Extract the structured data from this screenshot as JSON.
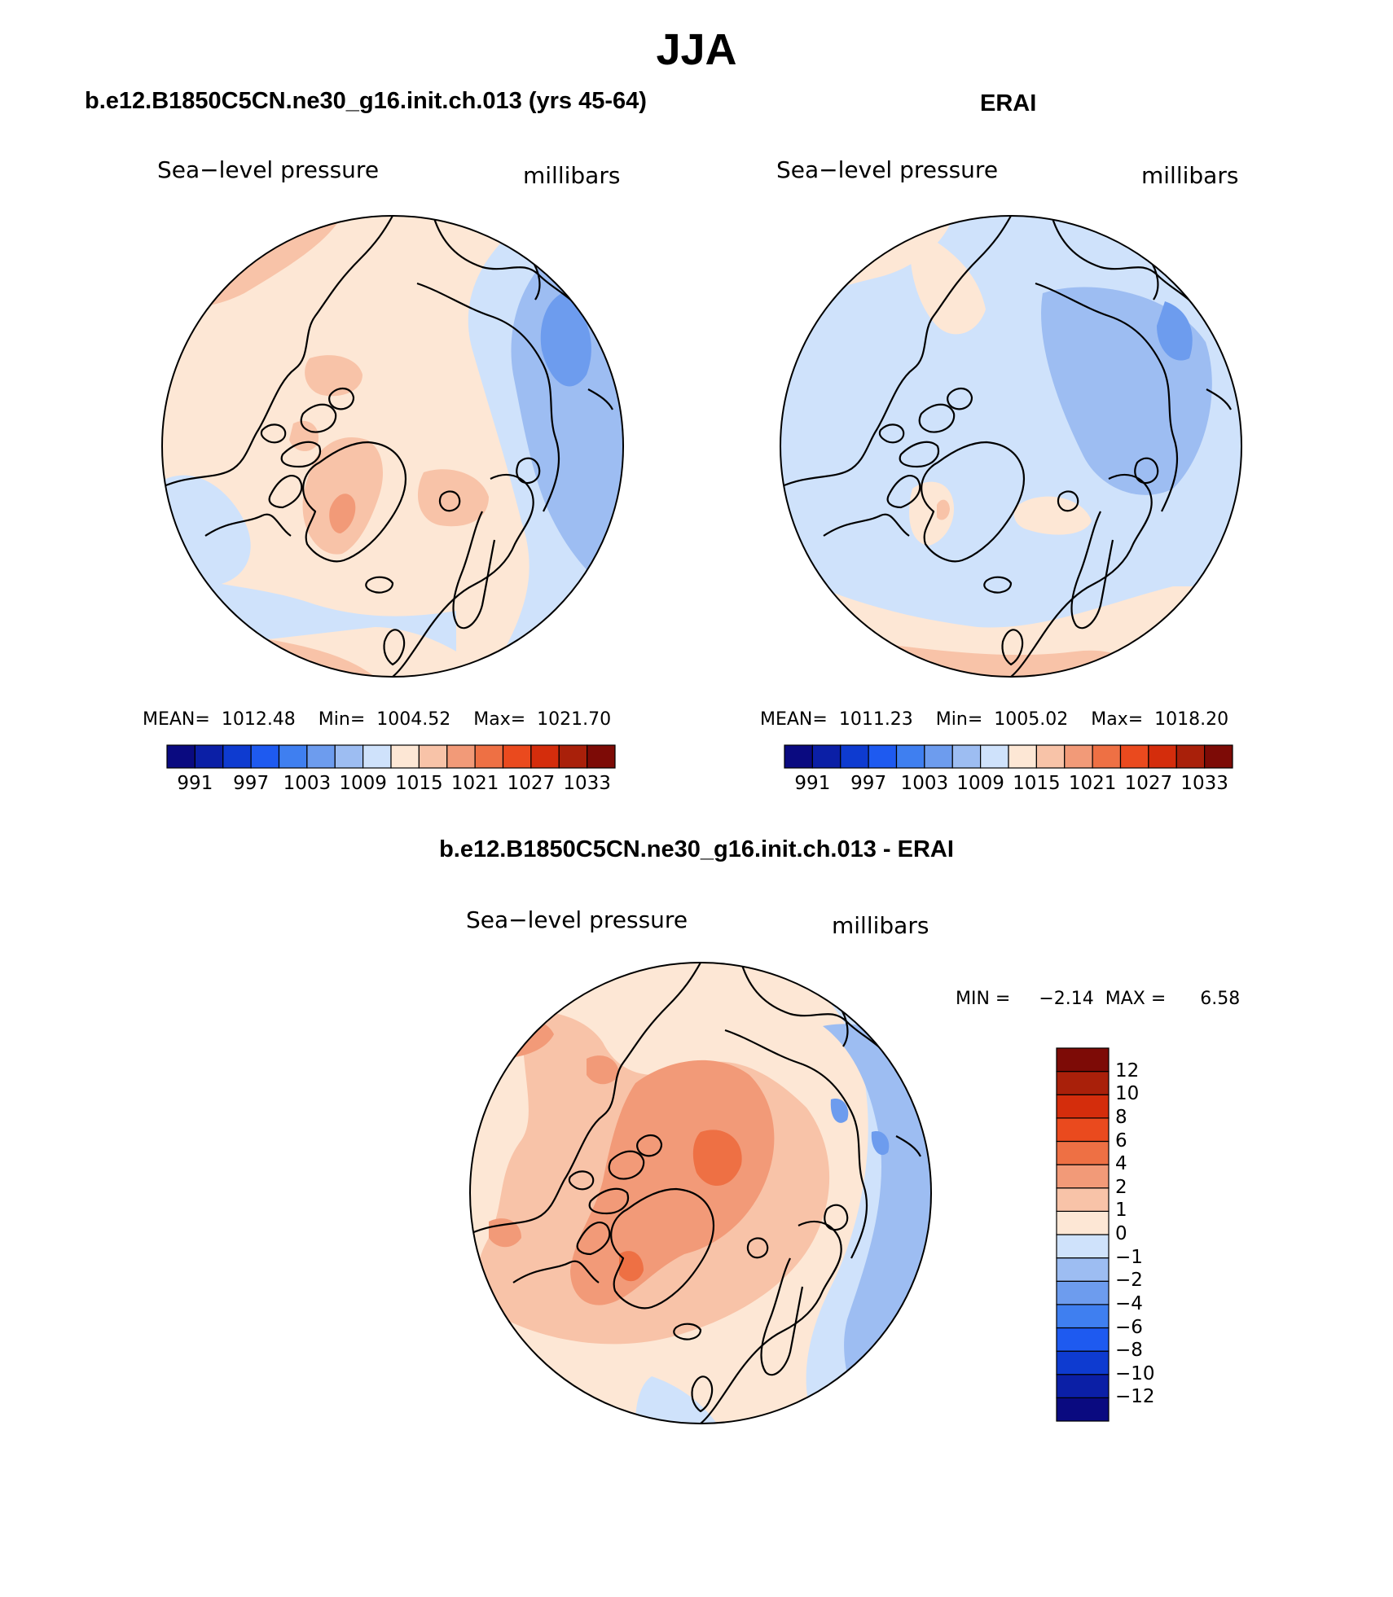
{
  "figure": {
    "title": "JJA"
  },
  "panels": [
    {
      "id": "model",
      "title": "b.e12.B1850C5CN.ne30_g16.init.ch.013 (yrs 45-64)",
      "variable": "Sea−level pressure",
      "units": "millibars",
      "stats": {
        "mean_label": "MEAN=",
        "mean": "1012.48",
        "min_label": "Min=",
        "min": "1004.52",
        "max_label": "Max=",
        "max": "1021.70"
      }
    },
    {
      "id": "obs",
      "title": "ERAI",
      "variable": "Sea−level pressure",
      "units": "millibars",
      "stats": {
        "mean_label": "MEAN=",
        "mean": "1011.23",
        "min_label": "Min=",
        "min": "1005.02",
        "max_label": "Max=",
        "max": "1018.20"
      }
    },
    {
      "id": "diff",
      "title": "b.e12.B1850C5CN.ne30_g16.init.ch.013 - ERAI",
      "variable": "Sea−level pressure",
      "units": "millibars",
      "stats": {
        "min_label": "MIN =",
        "min": "−2.14",
        "max_label": "MAX =",
        "max": "6.58"
      }
    }
  ],
  "colorbars": {
    "absolute": {
      "colors": [
        "#0a0a80",
        "#0b1fa6",
        "#0e3bd0",
        "#1e5af0",
        "#3f7ff0",
        "#6d9cee",
        "#9dbdf2",
        "#cfe2fb",
        "#fde7d5",
        "#f8c3a8",
        "#f29a78",
        "#ee7044",
        "#ea4a1e",
        "#d42d0c",
        "#a9200a",
        "#7d0b06"
      ],
      "tick_labels": [
        "991",
        "997",
        "1003",
        "1009",
        "1015",
        "1021",
        "1027",
        "1033"
      ]
    },
    "difference": {
      "colors_bottom_to_top": [
        "#0a0a80",
        "#0b1fa6",
        "#0e3bd0",
        "#1e5af0",
        "#3f7ff0",
        "#6d9cee",
        "#9dbdf2",
        "#cfe2fb",
        "#fde7d5",
        "#f8c3a8",
        "#f29a78",
        "#ee7044",
        "#ea4a1e",
        "#d42d0c",
        "#a9200a",
        "#7d0b06"
      ],
      "tick_labels_top_to_bottom": [
        "12",
        "10",
        "8",
        "6",
        "4",
        "2",
        "1",
        "0",
        "−1",
        "−2",
        "−4",
        "−6",
        "−8",
        "−10",
        "−12"
      ]
    }
  },
  "chart_data": [
    {
      "type": "heatmap",
      "title": "b.e12.B1850C5CN.ne30_g16.init.ch.013 (yrs 45-64)",
      "variable": "Sea−level pressure",
      "units": "millibars",
      "mean": 1012.48,
      "min": 1004.52,
      "max": 1021.7,
      "contour_levels": [
        991,
        994,
        997,
        1000,
        1003,
        1006,
        1009,
        1012,
        1015,
        1018,
        1021,
        1024,
        1027,
        1030,
        1033
      ]
    },
    {
      "type": "heatmap",
      "title": "ERAI",
      "variable": "Sea−level pressure",
      "units": "millibars",
      "mean": 1011.23,
      "min": 1005.02,
      "max": 1018.2,
      "contour_levels": [
        991,
        994,
        997,
        1000,
        1003,
        1006,
        1009,
        1012,
        1015,
        1018,
        1021,
        1024,
        1027,
        1030,
        1033
      ]
    },
    {
      "type": "heatmap",
      "title": "b.e12.B1850C5CN.ne30_g16.init.ch.013 - ERAI",
      "variable": "Sea−level pressure",
      "units": "millibars",
      "min": -2.14,
      "max": 6.58,
      "contour_levels": [
        -12,
        -10,
        -8,
        -6,
        -4,
        -2,
        -1,
        0,
        1,
        2,
        4,
        6,
        8,
        10,
        12
      ]
    }
  ]
}
